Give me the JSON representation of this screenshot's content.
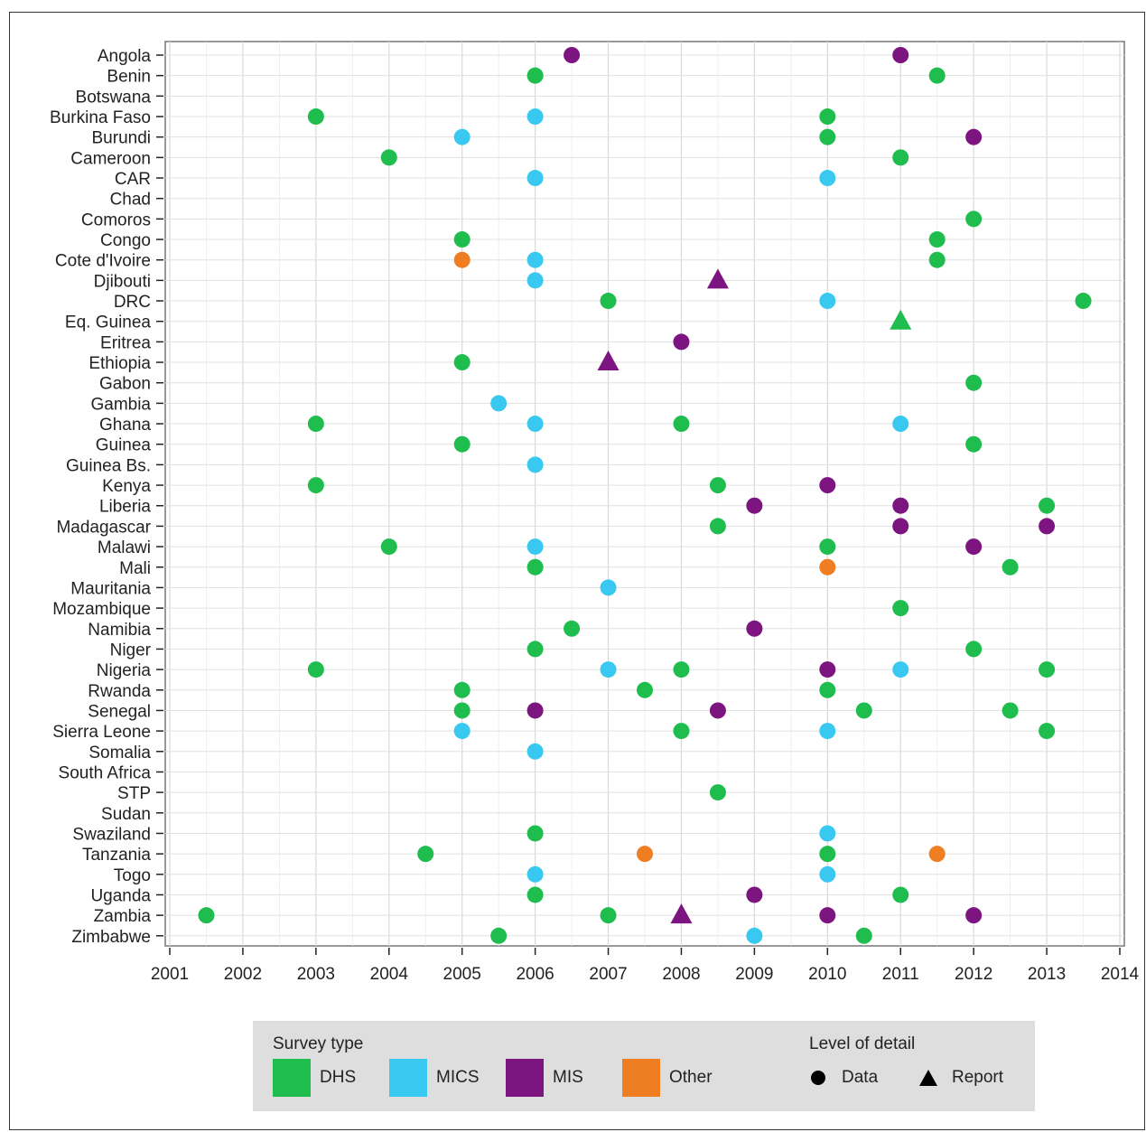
{
  "chart_data": {
    "type": "scatter",
    "xlabel": "",
    "ylabel": "",
    "xlim": [
      2001,
      2014
    ],
    "x_ticks": [
      "2001",
      "2002",
      "2003",
      "2004",
      "2005",
      "2006",
      "2007",
      "2008",
      "2009",
      "2010",
      "2011",
      "2012",
      "2013",
      "2014"
    ],
    "grid": true,
    "countries": [
      "Angola",
      "Benin",
      "Botswana",
      "Burkina Faso",
      "Burundi",
      "Cameroon",
      "CAR",
      "Chad",
      "Comoros",
      "Congo",
      "Cote d'Ivoire",
      "Djibouti",
      "DRC",
      "Eq. Guinea",
      "Eritrea",
      "Ethiopia",
      "Gabon",
      "Gambia",
      "Ghana",
      "Guinea",
      "Guinea Bs.",
      "Kenya",
      "Liberia",
      "Madagascar",
      "Malawi",
      "Mali",
      "Mauritania",
      "Mozambique",
      "Namibia",
      "Niger",
      "Nigeria",
      "Rwanda",
      "Senegal",
      "Sierra Leone",
      "Somalia",
      "South Africa",
      "STP",
      "Sudan",
      "Swaziland",
      "Tanzania",
      "Togo",
      "Uganda",
      "Zambia",
      "Zimbabwe"
    ],
    "colors": {
      "DHS": "#1ebd4d",
      "MICS": "#39c9f0",
      "MIS": "#7d1580",
      "Other": "#ef7d22"
    },
    "points": [
      {
        "country": "Angola",
        "year": 2006.5,
        "type": "MIS",
        "detail": "Data"
      },
      {
        "country": "Angola",
        "year": 2011,
        "type": "MIS",
        "detail": "Data"
      },
      {
        "country": "Benin",
        "year": 2006,
        "type": "DHS",
        "detail": "Data"
      },
      {
        "country": "Benin",
        "year": 2011.5,
        "type": "DHS",
        "detail": "Data"
      },
      {
        "country": "Burkina Faso",
        "year": 2003,
        "type": "DHS",
        "detail": "Data"
      },
      {
        "country": "Burkina Faso",
        "year": 2006,
        "type": "MICS",
        "detail": "Data"
      },
      {
        "country": "Burkina Faso",
        "year": 2010,
        "type": "DHS",
        "detail": "Data"
      },
      {
        "country": "Burundi",
        "year": 2005,
        "type": "MICS",
        "detail": "Data"
      },
      {
        "country": "Burundi",
        "year": 2010,
        "type": "DHS",
        "detail": "Data"
      },
      {
        "country": "Burundi",
        "year": 2012,
        "type": "MIS",
        "detail": "Data"
      },
      {
        "country": "Cameroon",
        "year": 2004,
        "type": "DHS",
        "detail": "Data"
      },
      {
        "country": "Cameroon",
        "year": 2011,
        "type": "DHS",
        "detail": "Data"
      },
      {
        "country": "CAR",
        "year": 2006,
        "type": "MICS",
        "detail": "Data"
      },
      {
        "country": "CAR",
        "year": 2010,
        "type": "MICS",
        "detail": "Data"
      },
      {
        "country": "Comoros",
        "year": 2012,
        "type": "DHS",
        "detail": "Data"
      },
      {
        "country": "Congo",
        "year": 2005,
        "type": "DHS",
        "detail": "Data"
      },
      {
        "country": "Congo",
        "year": 2011.5,
        "type": "DHS",
        "detail": "Data"
      },
      {
        "country": "Cote d'Ivoire",
        "year": 2005,
        "type": "Other",
        "detail": "Data"
      },
      {
        "country": "Cote d'Ivoire",
        "year": 2006,
        "type": "MICS",
        "detail": "Data"
      },
      {
        "country": "Cote d'Ivoire",
        "year": 2011.5,
        "type": "DHS",
        "detail": "Data"
      },
      {
        "country": "Djibouti",
        "year": 2006,
        "type": "MICS",
        "detail": "Data"
      },
      {
        "country": "Djibouti",
        "year": 2008.5,
        "type": "MIS",
        "detail": "Report"
      },
      {
        "country": "DRC",
        "year": 2007,
        "type": "DHS",
        "detail": "Data"
      },
      {
        "country": "DRC",
        "year": 2010,
        "type": "MICS",
        "detail": "Data"
      },
      {
        "country": "DRC",
        "year": 2013.5,
        "type": "DHS",
        "detail": "Data"
      },
      {
        "country": "Eq. Guinea",
        "year": 2011,
        "type": "DHS",
        "detail": "Report"
      },
      {
        "country": "Eritrea",
        "year": 2008,
        "type": "MIS",
        "detail": "Data"
      },
      {
        "country": "Ethiopia",
        "year": 2005,
        "type": "DHS",
        "detail": "Data"
      },
      {
        "country": "Ethiopia",
        "year": 2007,
        "type": "MIS",
        "detail": "Report"
      },
      {
        "country": "Gabon",
        "year": 2012,
        "type": "DHS",
        "detail": "Data"
      },
      {
        "country": "Gambia",
        "year": 2005.5,
        "type": "MICS",
        "detail": "Data"
      },
      {
        "country": "Ghana",
        "year": 2003,
        "type": "DHS",
        "detail": "Data"
      },
      {
        "country": "Ghana",
        "year": 2006,
        "type": "MICS",
        "detail": "Data"
      },
      {
        "country": "Ghana",
        "year": 2008,
        "type": "DHS",
        "detail": "Data"
      },
      {
        "country": "Ghana",
        "year": 2011,
        "type": "MICS",
        "detail": "Data"
      },
      {
        "country": "Guinea",
        "year": 2005,
        "type": "DHS",
        "detail": "Data"
      },
      {
        "country": "Guinea",
        "year": 2012,
        "type": "DHS",
        "detail": "Data"
      },
      {
        "country": "Guinea Bs.",
        "year": 2006,
        "type": "MICS",
        "detail": "Data"
      },
      {
        "country": "Kenya",
        "year": 2003,
        "type": "DHS",
        "detail": "Data"
      },
      {
        "country": "Kenya",
        "year": 2008.5,
        "type": "DHS",
        "detail": "Data"
      },
      {
        "country": "Kenya",
        "year": 2010,
        "type": "MIS",
        "detail": "Data"
      },
      {
        "country": "Liberia",
        "year": 2009,
        "type": "MIS",
        "detail": "Data"
      },
      {
        "country": "Liberia",
        "year": 2011,
        "type": "MIS",
        "detail": "Data"
      },
      {
        "country": "Liberia",
        "year": 2013,
        "type": "DHS",
        "detail": "Data"
      },
      {
        "country": "Madagascar",
        "year": 2008.5,
        "type": "DHS",
        "detail": "Data"
      },
      {
        "country": "Madagascar",
        "year": 2011,
        "type": "MIS",
        "detail": "Data"
      },
      {
        "country": "Madagascar",
        "year": 2013,
        "type": "MIS",
        "detail": "Data"
      },
      {
        "country": "Malawi",
        "year": 2004,
        "type": "DHS",
        "detail": "Data"
      },
      {
        "country": "Malawi",
        "year": 2006,
        "type": "MICS",
        "detail": "Data"
      },
      {
        "country": "Malawi",
        "year": 2010,
        "type": "DHS",
        "detail": "Data"
      },
      {
        "country": "Malawi",
        "year": 2012,
        "type": "MIS",
        "detail": "Data"
      },
      {
        "country": "Mali",
        "year": 2006,
        "type": "DHS",
        "detail": "Data"
      },
      {
        "country": "Mali",
        "year": 2010,
        "type": "Other",
        "detail": "Data"
      },
      {
        "country": "Mali",
        "year": 2012.5,
        "type": "DHS",
        "detail": "Data"
      },
      {
        "country": "Mauritania",
        "year": 2007,
        "type": "MICS",
        "detail": "Data"
      },
      {
        "country": "Mozambique",
        "year": 2011,
        "type": "DHS",
        "detail": "Data"
      },
      {
        "country": "Namibia",
        "year": 2006.5,
        "type": "DHS",
        "detail": "Data"
      },
      {
        "country": "Namibia",
        "year": 2009,
        "type": "MIS",
        "detail": "Data"
      },
      {
        "country": "Niger",
        "year": 2006,
        "type": "DHS",
        "detail": "Data"
      },
      {
        "country": "Niger",
        "year": 2012,
        "type": "DHS",
        "detail": "Data"
      },
      {
        "country": "Nigeria",
        "year": 2003,
        "type": "DHS",
        "detail": "Data"
      },
      {
        "country": "Nigeria",
        "year": 2007,
        "type": "MICS",
        "detail": "Data"
      },
      {
        "country": "Nigeria",
        "year": 2008,
        "type": "DHS",
        "detail": "Data"
      },
      {
        "country": "Nigeria",
        "year": 2010,
        "type": "MIS",
        "detail": "Data"
      },
      {
        "country": "Nigeria",
        "year": 2011,
        "type": "MICS",
        "detail": "Data"
      },
      {
        "country": "Nigeria",
        "year": 2013,
        "type": "DHS",
        "detail": "Data"
      },
      {
        "country": "Rwanda",
        "year": 2005,
        "type": "DHS",
        "detail": "Data"
      },
      {
        "country": "Rwanda",
        "year": 2007.5,
        "type": "DHS",
        "detail": "Data"
      },
      {
        "country": "Rwanda",
        "year": 2010,
        "type": "DHS",
        "detail": "Data"
      },
      {
        "country": "Senegal",
        "year": 2005,
        "type": "DHS",
        "detail": "Data"
      },
      {
        "country": "Senegal",
        "year": 2006,
        "type": "MIS",
        "detail": "Data"
      },
      {
        "country": "Senegal",
        "year": 2008.5,
        "type": "MIS",
        "detail": "Data"
      },
      {
        "country": "Senegal",
        "year": 2010.5,
        "type": "DHS",
        "detail": "Data"
      },
      {
        "country": "Senegal",
        "year": 2012.5,
        "type": "DHS",
        "detail": "Data"
      },
      {
        "country": "Sierra Leone",
        "year": 2005,
        "type": "MICS",
        "detail": "Data"
      },
      {
        "country": "Sierra Leone",
        "year": 2008,
        "type": "DHS",
        "detail": "Data"
      },
      {
        "country": "Sierra Leone",
        "year": 2010,
        "type": "MICS",
        "detail": "Data"
      },
      {
        "country": "Sierra Leone",
        "year": 2013,
        "type": "DHS",
        "detail": "Data"
      },
      {
        "country": "Somalia",
        "year": 2006,
        "type": "MICS",
        "detail": "Data"
      },
      {
        "country": "STP",
        "year": 2008.5,
        "type": "DHS",
        "detail": "Data"
      },
      {
        "country": "Swaziland",
        "year": 2006,
        "type": "DHS",
        "detail": "Data"
      },
      {
        "country": "Swaziland",
        "year": 2010,
        "type": "MICS",
        "detail": "Data"
      },
      {
        "country": "Tanzania",
        "year": 2004.5,
        "type": "DHS",
        "detail": "Data"
      },
      {
        "country": "Tanzania",
        "year": 2007.5,
        "type": "Other",
        "detail": "Data"
      },
      {
        "country": "Tanzania",
        "year": 2010,
        "type": "DHS",
        "detail": "Data"
      },
      {
        "country": "Tanzania",
        "year": 2011.5,
        "type": "Other",
        "detail": "Data"
      },
      {
        "country": "Togo",
        "year": 2006,
        "type": "MICS",
        "detail": "Data"
      },
      {
        "country": "Togo",
        "year": 2010,
        "type": "MICS",
        "detail": "Data"
      },
      {
        "country": "Uganda",
        "year": 2006,
        "type": "DHS",
        "detail": "Data"
      },
      {
        "country": "Uganda",
        "year": 2009,
        "type": "MIS",
        "detail": "Data"
      },
      {
        "country": "Uganda",
        "year": 2011,
        "type": "DHS",
        "detail": "Data"
      },
      {
        "country": "Zambia",
        "year": 2001.5,
        "type": "DHS",
        "detail": "Data"
      },
      {
        "country": "Zambia",
        "year": 2007,
        "type": "DHS",
        "detail": "Data"
      },
      {
        "country": "Zambia",
        "year": 2008,
        "type": "MIS",
        "detail": "Report"
      },
      {
        "country": "Zambia",
        "year": 2010,
        "type": "MIS",
        "detail": "Data"
      },
      {
        "country": "Zambia",
        "year": 2012,
        "type": "MIS",
        "detail": "Data"
      },
      {
        "country": "Zimbabwe",
        "year": 2005.5,
        "type": "DHS",
        "detail": "Data"
      },
      {
        "country": "Zimbabwe",
        "year": 2009,
        "type": "MICS",
        "detail": "Data"
      },
      {
        "country": "Zimbabwe",
        "year": 2010.5,
        "type": "DHS",
        "detail": "Data"
      }
    ]
  },
  "legend": {
    "survey_type_title": "Survey type",
    "survey_types": [
      {
        "label": "DHS",
        "color": "#1ebd4d"
      },
      {
        "label": "MICS",
        "color": "#39c9f0"
      },
      {
        "label": "MIS",
        "color": "#7d1580"
      },
      {
        "label": "Other",
        "color": "#ef7d22"
      }
    ],
    "detail_title": "Level of detail",
    "details": [
      {
        "label": "Data",
        "shape": "circle"
      },
      {
        "label": "Report",
        "shape": "triangle"
      }
    ]
  }
}
